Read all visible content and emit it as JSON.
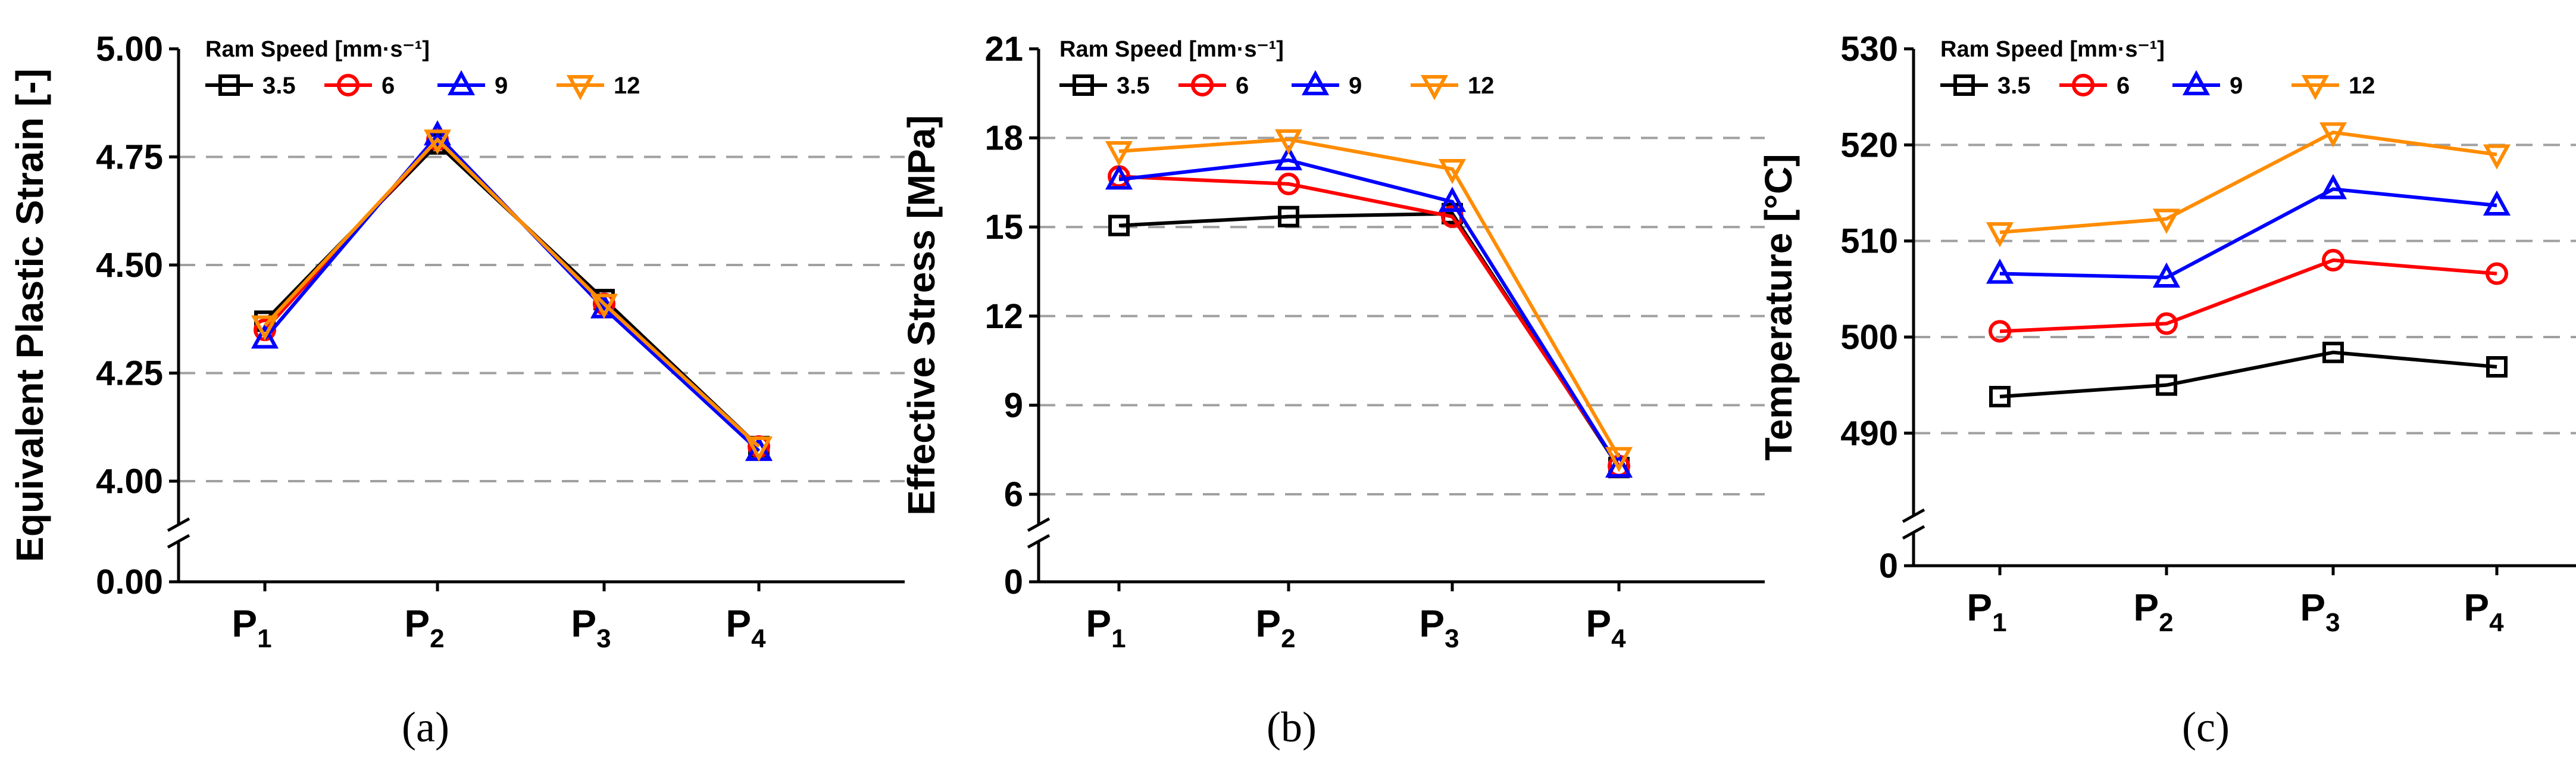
{
  "chart_data": [
    {
      "type": "line",
      "panel_label": "(a)",
      "ylabel": "Equivalent Plastic Strain [-]",
      "categories": [
        "P1",
        "P2",
        "P3",
        "P4"
      ],
      "category_labels": [
        {
          "main": "P",
          "sub": "1"
        },
        {
          "main": "P",
          "sub": "2"
        },
        {
          "main": "P",
          "sub": "3"
        },
        {
          "main": "P",
          "sub": "4"
        }
      ],
      "ylim": [
        4.0,
        5.0
      ],
      "yticks": [
        "4.00",
        "4.25",
        "4.50",
        "4.75",
        "5.00"
      ],
      "y_break_value": "0.00",
      "grid_values": [
        4.0,
        4.25,
        4.5,
        4.75
      ],
      "legend_title": "Ram Speed [mm·s⁻¹]",
      "legend_position": "top-left",
      "series": [
        {
          "name": "3.5",
          "values": [
            4.37,
            4.78,
            4.42,
            4.08
          ],
          "color": "#000000",
          "marker": "square"
        },
        {
          "name": "6",
          "values": [
            4.35,
            4.79,
            4.41,
            4.08
          ],
          "color": "#ff0000",
          "marker": "circle"
        },
        {
          "name": "9",
          "values": [
            4.33,
            4.8,
            4.4,
            4.07
          ],
          "color": "#0000ff",
          "marker": "triangle-up"
        },
        {
          "name": "12",
          "values": [
            4.36,
            4.79,
            4.41,
            4.08
          ],
          "color": "#ff8c00",
          "marker": "triangle-down"
        }
      ]
    },
    {
      "type": "line",
      "panel_label": "(b)",
      "ylabel": "Effective Stress [MPa]",
      "categories": [
        "P1",
        "P2",
        "P3",
        "P4"
      ],
      "category_labels": [
        {
          "main": "P",
          "sub": "1"
        },
        {
          "main": "P",
          "sub": "2"
        },
        {
          "main": "P",
          "sub": "3"
        },
        {
          "main": "P",
          "sub": "4"
        }
      ],
      "ylim": [
        6,
        21
      ],
      "yticks": [
        "6",
        "9",
        "12",
        "15",
        "18",
        "21"
      ],
      "y_break_value": "0",
      "grid_values": [
        6,
        9,
        12,
        15,
        18
      ],
      "legend_title": "Ram Speed [mm·s⁻¹]",
      "legend_position": "top-left",
      "series": [
        {
          "name": "3.5",
          "values": [
            15.05,
            15.35,
            15.45,
            6.9
          ],
          "color": "#000000",
          "marker": "square"
        },
        {
          "name": "6",
          "values": [
            16.7,
            16.45,
            15.35,
            6.95
          ],
          "color": "#ff0000",
          "marker": "circle"
        },
        {
          "name": "9",
          "values": [
            16.6,
            17.25,
            15.85,
            6.9
          ],
          "color": "#0000ff",
          "marker": "triangle-up"
        },
        {
          "name": "12",
          "values": [
            17.55,
            17.95,
            16.95,
            7.25
          ],
          "color": "#ff8c00",
          "marker": "triangle-down"
        }
      ]
    },
    {
      "type": "line",
      "panel_label": "(c)",
      "ylabel": "Temperature [°C]",
      "categories": [
        "P1",
        "P2",
        "P3",
        "P4"
      ],
      "category_labels": [
        {
          "main": "P",
          "sub": "1"
        },
        {
          "main": "P",
          "sub": "2"
        },
        {
          "main": "P",
          "sub": "3"
        },
        {
          "main": "P",
          "sub": "4"
        }
      ],
      "ylim": [
        485,
        530
      ],
      "yticks": [
        "490",
        "500",
        "510",
        "520",
        "530"
      ],
      "y_break_value": "0",
      "grid_values": [
        490,
        500,
        510,
        520
      ],
      "legend_title": "Ram Speed [mm·s⁻¹]",
      "legend_position": "top-left",
      "series": [
        {
          "name": "3.5",
          "values": [
            493.8,
            495.0,
            498.4,
            496.9
          ],
          "color": "#000000",
          "marker": "square"
        },
        {
          "name": "6",
          "values": [
            500.6,
            501.4,
            508.0,
            506.6
          ],
          "color": "#ff0000",
          "marker": "circle"
        },
        {
          "name": "9",
          "values": [
            506.6,
            506.2,
            515.4,
            513.7
          ],
          "color": "#0000ff",
          "marker": "triangle-up"
        },
        {
          "name": "12",
          "values": [
            510.9,
            512.3,
            521.3,
            519.0
          ],
          "color": "#ff8c00",
          "marker": "triangle-down"
        }
      ]
    }
  ]
}
